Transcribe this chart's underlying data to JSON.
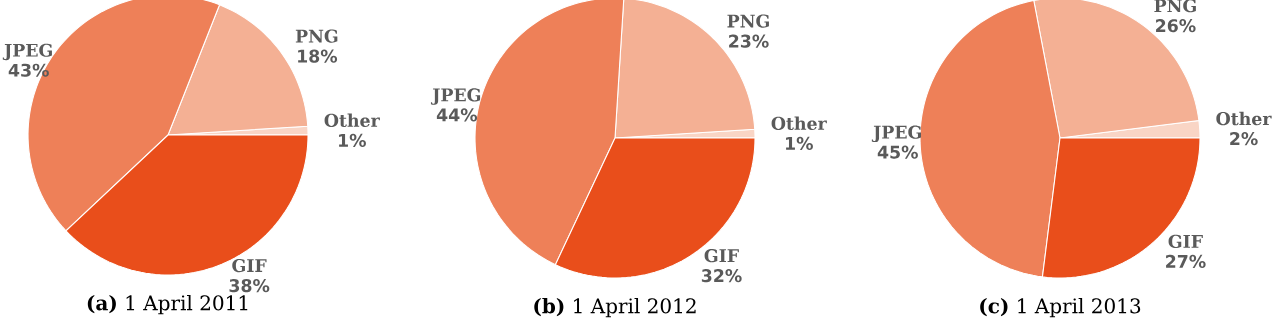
{
  "chart_data": [
    {
      "type": "pie",
      "title": "**(a)** 1 April 2011",
      "categories": [
        "Other",
        "PNG",
        "JPEG",
        "GIF"
      ],
      "values": [
        1,
        18,
        43,
        38
      ],
      "value_labels": [
        "1%",
        "18%",
        "43%",
        "38%"
      ],
      "colors": [
        "#f9d5c5",
        "#f4b094",
        "#ee8058",
        "#e94e1b"
      ]
    },
    {
      "type": "pie",
      "title": "**(b)** 1 April 2012",
      "categories": [
        "Other",
        "PNG",
        "JPEG",
        "GIF"
      ],
      "values": [
        1,
        23,
        44,
        32
      ],
      "value_labels": [
        "1%",
        "23%",
        "44%",
        "32%"
      ],
      "colors": [
        "#f9d5c5",
        "#f4b094",
        "#ee8058",
        "#e94e1b"
      ]
    },
    {
      "type": "pie",
      "title": "**(c)** 1 April 2013",
      "categories": [
        "Other",
        "PNG",
        "JPEG",
        "GIF"
      ],
      "values": [
        2,
        26,
        45,
        27
      ],
      "value_labels": [
        "2%",
        "26%",
        "45%",
        "27%"
      ],
      "colors": [
        "#f9d5c5",
        "#f4b094",
        "#ee8058",
        "#e94e1b"
      ]
    }
  ]
}
